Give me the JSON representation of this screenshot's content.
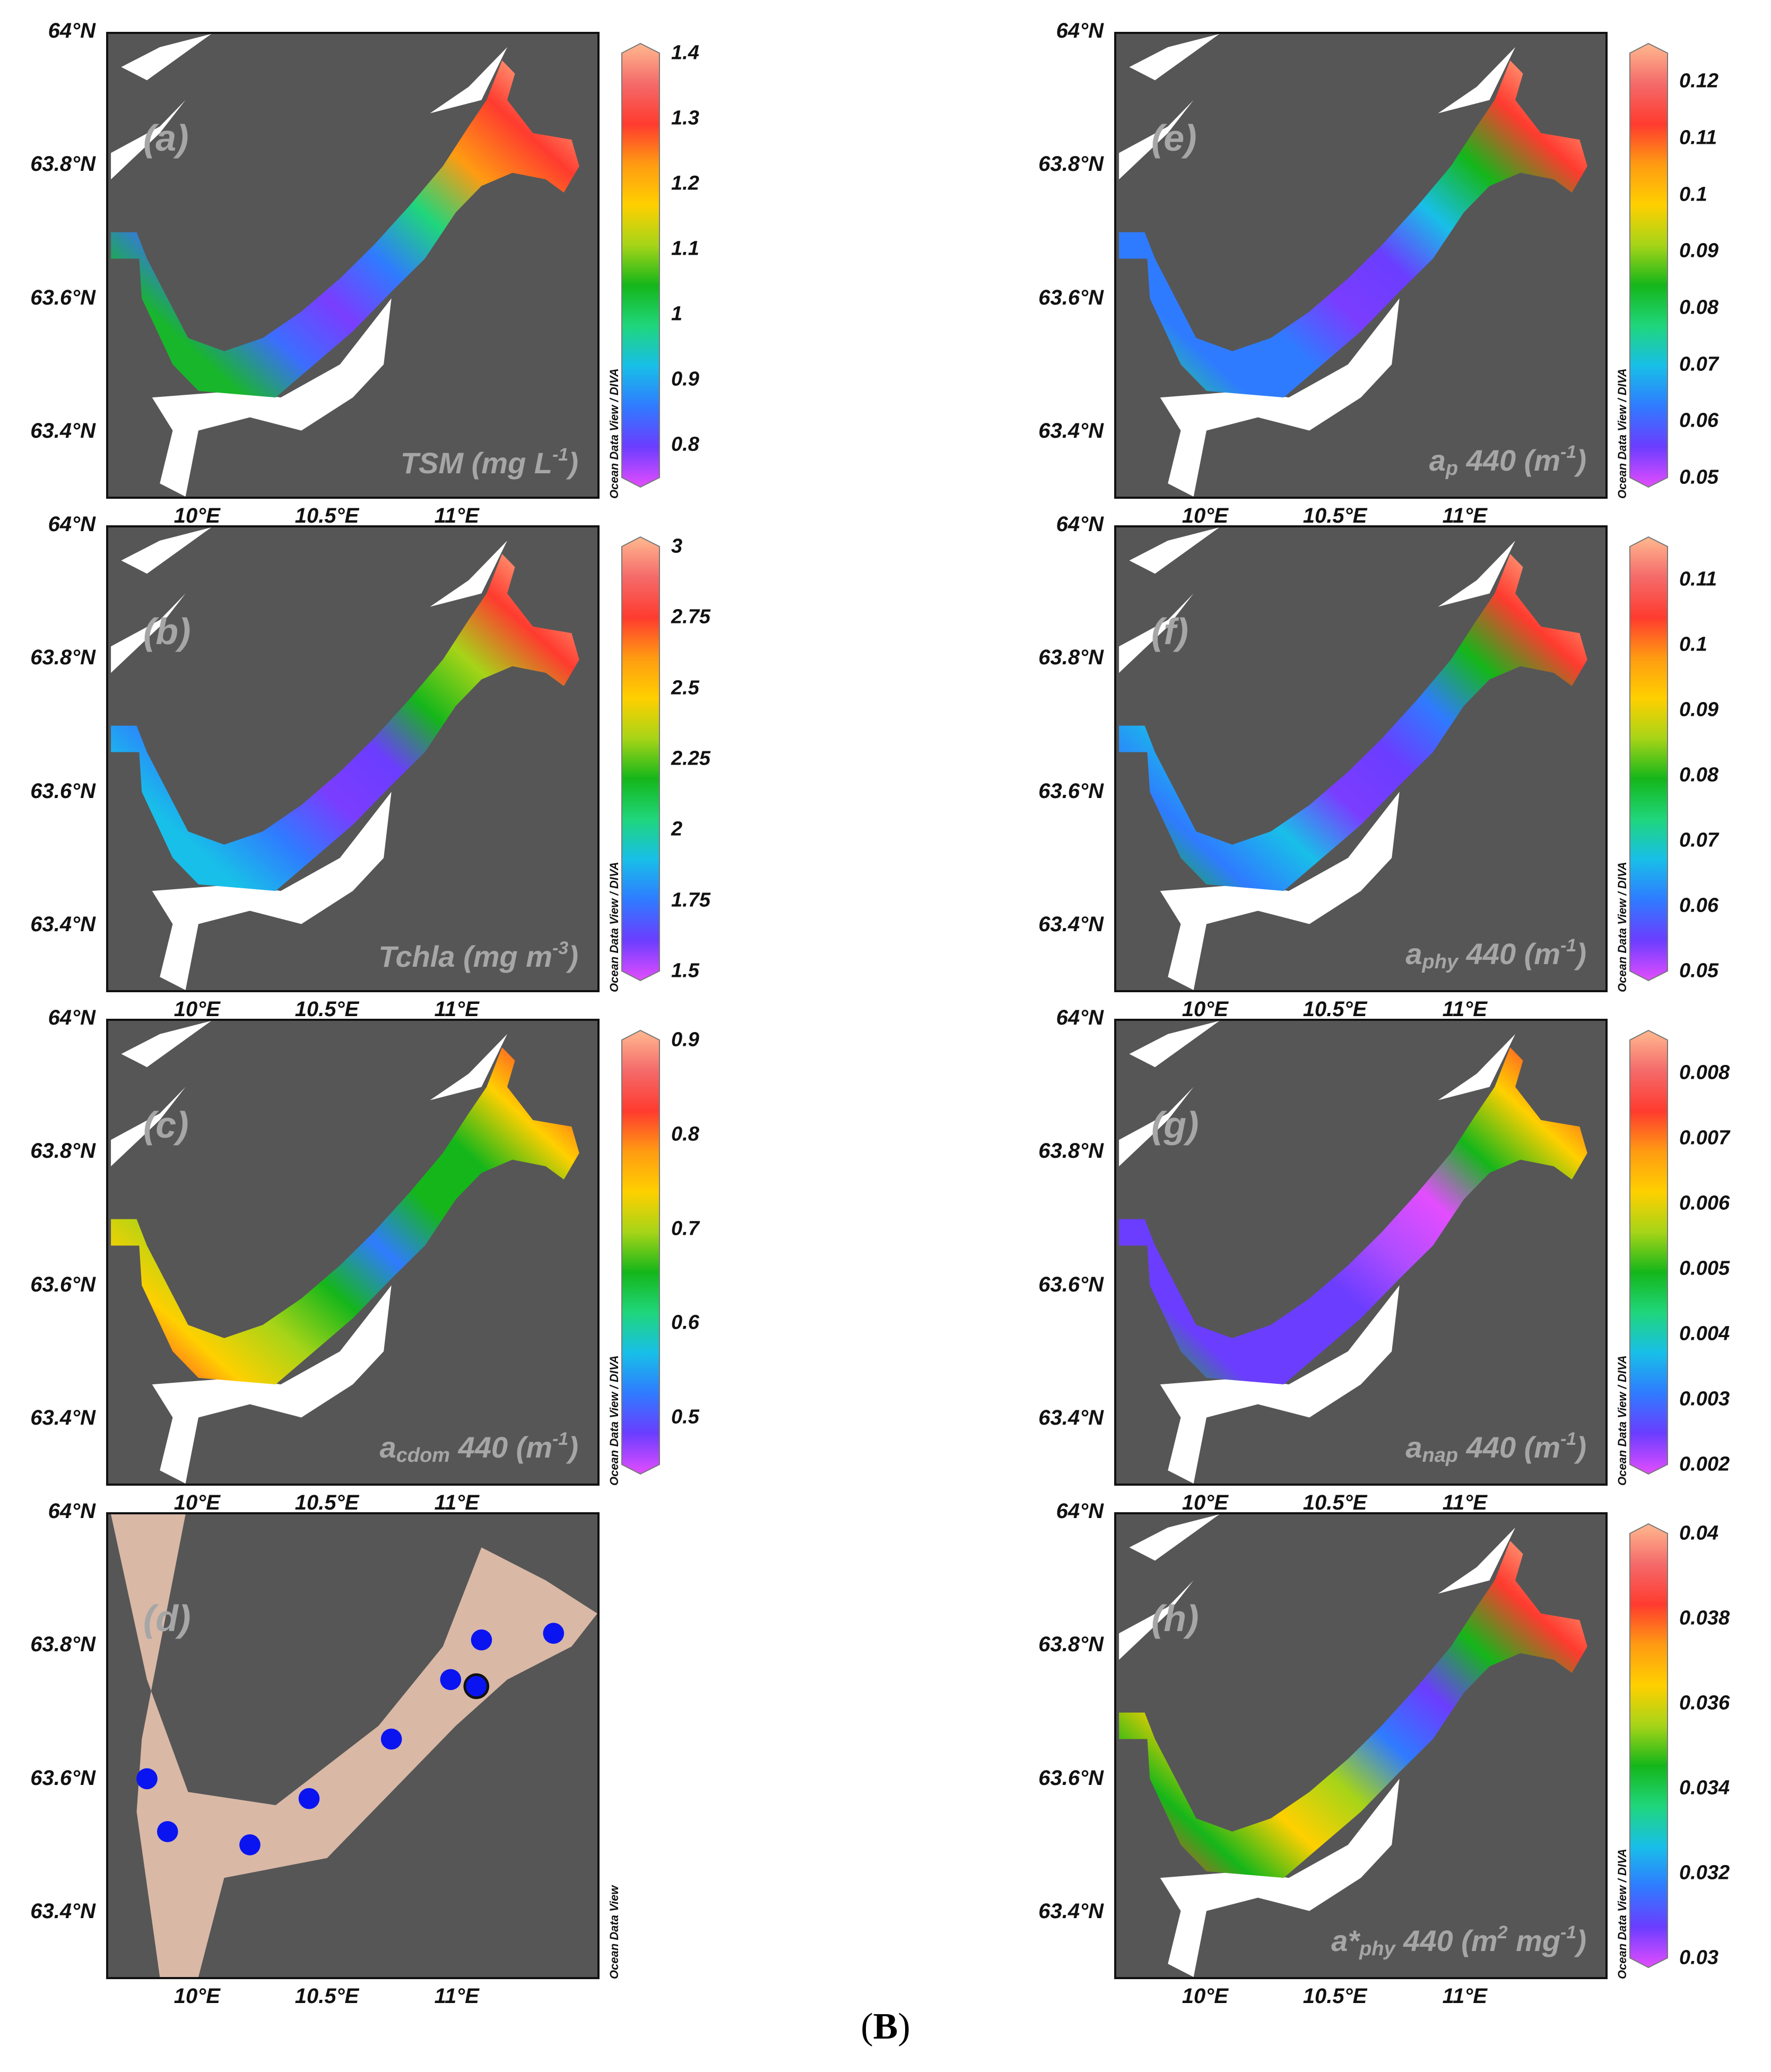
{
  "figure_label": "B",
  "map_credit_diva": "Ocean Data View / DIVA",
  "map_credit_plain": "Ocean Data View",
  "lat_ticks": [
    "64°N",
    "63.8°N",
    "63.6°N",
    "63.4°N"
  ],
  "lon_ticks": [
    "10°E",
    "10.5°E",
    "11°E"
  ],
  "colors": {
    "land": "#565656",
    "water_outside": "#ffffff",
    "station_area": "#d9b8a6",
    "station_dot": "#0a14f0"
  },
  "panels": [
    {
      "id": "a",
      "letter": "(a)",
      "label_main": "TSM (mg L",
      "label_sub": "",
      "label_sup": "-1",
      "label_tail": ")",
      "colorbar": [
        "1.4",
        "1.3",
        "1.2",
        "1.1",
        "1",
        "0.9",
        "0.8"
      ],
      "range": [
        0.75,
        1.4
      ]
    },
    {
      "id": "e",
      "letter": "(e)",
      "label_main": "a",
      "label_sub": "p",
      "label_mid": " 440 (m",
      "label_sup": "-1",
      "label_tail": ")",
      "colorbar": [
        "0.12",
        "0.11",
        "0.1",
        "0.09",
        "0.08",
        "0.07",
        "0.06",
        "0.05"
      ],
      "range": [
        0.05,
        0.125
      ]
    },
    {
      "id": "b",
      "letter": "(b)",
      "label_main": "Tchla (mg m",
      "label_sub": "",
      "label_sup": "-3",
      "label_tail": ")",
      "colorbar": [
        "3",
        "2.75",
        "2.5",
        "2.25",
        "2",
        "1.75",
        "1.5"
      ],
      "range": [
        1.5,
        3.0
      ]
    },
    {
      "id": "f",
      "letter": "(f)",
      "label_main": "a",
      "label_sub": "phy",
      "label_mid": " 440 (m",
      "label_sup": "-1",
      "label_tail": ")",
      "colorbar": [
        "0.11",
        "0.1",
        "0.09",
        "0.08",
        "0.07",
        "0.06",
        "0.05"
      ],
      "range": [
        0.05,
        0.115
      ]
    },
    {
      "id": "c",
      "letter": "(c)",
      "label_main": "a",
      "label_sub": "cdom",
      "label_mid": " 440 (m",
      "label_sup": "-1",
      "label_tail": ")",
      "colorbar": [
        "0.9",
        "0.8",
        "0.7",
        "0.6",
        "0.5"
      ],
      "range": [
        0.45,
        0.9
      ]
    },
    {
      "id": "g",
      "letter": "(g)",
      "label_main": "a",
      "label_sub": "nap",
      "label_mid": " 440 (m",
      "label_sup": "-1",
      "label_tail": ")",
      "colorbar": [
        "0.008",
        "0.007",
        "0.006",
        "0.005",
        "0.004",
        "0.003",
        "0.002"
      ],
      "range": [
        0.002,
        0.0085
      ]
    },
    {
      "id": "d",
      "letter": "(d)",
      "stations": true
    },
    {
      "id": "h",
      "letter": "(h)",
      "label_main": "a*",
      "label_sub": "phy",
      "label_mid": " 440 (m",
      "label_sup": "2",
      "label_tail": " mg",
      "label_sup2": "-1",
      "label_end": ")",
      "colorbar": [
        "0.04",
        "0.038",
        "0.036",
        "0.034",
        "0.032",
        "0.03"
      ],
      "range": [
        0.03,
        0.04
      ]
    }
  ],
  "stations": [
    {
      "lon": 9.8,
      "lat": 63.6
    },
    {
      "lon": 9.88,
      "lat": 63.52
    },
    {
      "lon": 10.2,
      "lat": 63.5
    },
    {
      "lon": 10.43,
      "lat": 63.57
    },
    {
      "lon": 10.75,
      "lat": 63.66
    },
    {
      "lon": 10.98,
      "lat": 63.75
    },
    {
      "lon": 11.1,
      "lat": 63.81
    },
    {
      "lon": 11.08,
      "lat": 63.74,
      "highlight": true
    },
    {
      "lon": 11.38,
      "lat": 63.82
    }
  ]
}
